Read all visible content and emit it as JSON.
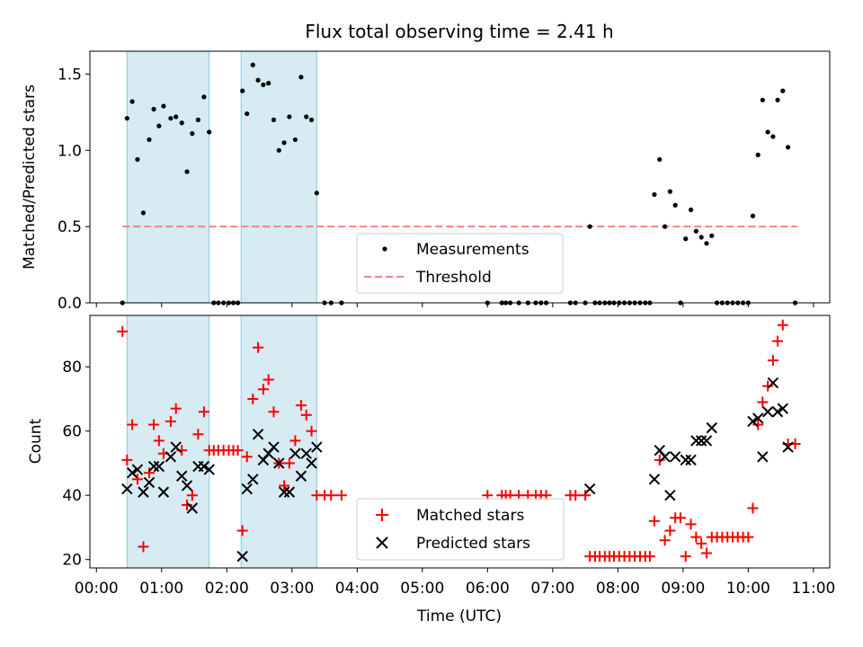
{
  "chart_data": [
    {
      "type": "scatter",
      "title": "Flux total observing time = 2.41 h",
      "xlabel": "",
      "ylabel": "Matched/Predicted stars",
      "xlim": [
        -0.1,
        11.25
      ],
      "ylim": [
        0,
        1.65
      ],
      "xticks": [
        0,
        1,
        2,
        3,
        4,
        5,
        6,
        7,
        8,
        9,
        10,
        11
      ],
      "yticks": [
        0.0,
        0.5,
        1.0,
        1.5
      ],
      "ytick_labels": [
        "0.0",
        "0.5",
        "1.0",
        "1.5"
      ],
      "shaded_intervals": [
        [
          0.47,
          1.73
        ],
        [
          2.22,
          3.38
        ]
      ],
      "threshold": {
        "value": 0.5,
        "x": [
          0.4,
          10.75
        ],
        "color": "#ff8080",
        "label": "Threshold"
      },
      "measurements": {
        "label": "Measurements",
        "color": "#000000",
        "points": [
          [
            0.4,
            0.0
          ],
          [
            0.47,
            1.21
          ],
          [
            0.55,
            1.32
          ],
          [
            0.63,
            0.94
          ],
          [
            0.72,
            0.59
          ],
          [
            0.81,
            1.07
          ],
          [
            0.88,
            1.27
          ],
          [
            0.96,
            1.16
          ],
          [
            1.03,
            1.29
          ],
          [
            1.14,
            1.21
          ],
          [
            1.22,
            1.22
          ],
          [
            1.31,
            1.18
          ],
          [
            1.39,
            0.86
          ],
          [
            1.47,
            1.11
          ],
          [
            1.56,
            1.2
          ],
          [
            1.65,
            1.35
          ],
          [
            1.73,
            1.12
          ],
          [
            1.8,
            0.0
          ],
          [
            1.87,
            0.0
          ],
          [
            1.95,
            0.0
          ],
          [
            2.03,
            0.0
          ],
          [
            2.1,
            0.0
          ],
          [
            2.17,
            0.0
          ],
          [
            2.24,
            1.39
          ],
          [
            2.31,
            1.24
          ],
          [
            2.4,
            1.56
          ],
          [
            2.48,
            1.46
          ],
          [
            2.56,
            1.43
          ],
          [
            2.64,
            1.44
          ],
          [
            2.72,
            1.2
          ],
          [
            2.8,
            1.0
          ],
          [
            2.88,
            1.05
          ],
          [
            2.96,
            1.22
          ],
          [
            3.05,
            1.07
          ],
          [
            3.14,
            1.48
          ],
          [
            3.22,
            1.22
          ],
          [
            3.3,
            1.2
          ],
          [
            3.38,
            0.72
          ],
          [
            3.5,
            0.0
          ],
          [
            3.6,
            0.0
          ],
          [
            3.76,
            0.0
          ],
          [
            6.0,
            0.0
          ],
          [
            6.22,
            0.0
          ],
          [
            6.28,
            0.0
          ],
          [
            6.35,
            0.0
          ],
          [
            6.48,
            0.0
          ],
          [
            6.62,
            0.0
          ],
          [
            6.74,
            0.0
          ],
          [
            6.82,
            0.0
          ],
          [
            6.9,
            0.0
          ],
          [
            7.27,
            0.0
          ],
          [
            7.35,
            0.0
          ],
          [
            7.5,
            0.0
          ],
          [
            7.57,
            0.5
          ],
          [
            7.65,
            0.0
          ],
          [
            7.72,
            0.0
          ],
          [
            7.8,
            0.0
          ],
          [
            7.87,
            0.0
          ],
          [
            7.94,
            0.0
          ],
          [
            8.02,
            0.0
          ],
          [
            8.1,
            0.0
          ],
          [
            8.18,
            0.0
          ],
          [
            8.26,
            0.0
          ],
          [
            8.34,
            0.0
          ],
          [
            8.42,
            0.0
          ],
          [
            8.49,
            0.0
          ],
          [
            8.56,
            0.71
          ],
          [
            8.64,
            0.94
          ],
          [
            8.72,
            0.5
          ],
          [
            8.8,
            0.73
          ],
          [
            8.88,
            0.64
          ],
          [
            8.96,
            0.0
          ],
          [
            9.04,
            0.42
          ],
          [
            9.12,
            0.61
          ],
          [
            9.2,
            0.47
          ],
          [
            9.28,
            0.43
          ],
          [
            9.36,
            0.39
          ],
          [
            9.44,
            0.44
          ],
          [
            9.52,
            0.0
          ],
          [
            9.6,
            0.0
          ],
          [
            9.68,
            0.0
          ],
          [
            9.76,
            0.0
          ],
          [
            9.84,
            0.0
          ],
          [
            9.92,
            0.0
          ],
          [
            10.0,
            0.0
          ],
          [
            10.07,
            0.57
          ],
          [
            10.15,
            0.97
          ],
          [
            10.22,
            1.33
          ],
          [
            10.3,
            1.12
          ],
          [
            10.38,
            1.09
          ],
          [
            10.45,
            1.33
          ],
          [
            10.53,
            1.39
          ],
          [
            10.61,
            1.02
          ],
          [
            10.72,
            0.0
          ]
        ]
      },
      "legend": {
        "location": "lower center",
        "entries": [
          "Measurements",
          "Threshold"
        ]
      }
    },
    {
      "type": "scatter",
      "title": "",
      "xlabel": "Time (UTC)",
      "ylabel": "Count",
      "xlim": [
        -0.1,
        11.25
      ],
      "ylim": [
        17.4,
        96
      ],
      "xticks": [
        0,
        1,
        2,
        3,
        4,
        5,
        6,
        7,
        8,
        9,
        10,
        11
      ],
      "xtick_labels": [
        "00:00",
        "01:00",
        "02:00",
        "03:00",
        "04:00",
        "05:00",
        "06:00",
        "07:00",
        "08:00",
        "09:00",
        "10:00",
        "11:00"
      ],
      "yticks": [
        20,
        40,
        60,
        80
      ],
      "ytick_labels": [
        "20",
        "40",
        "60",
        "80"
      ],
      "shaded_intervals": [
        [
          0.47,
          1.73
        ],
        [
          2.22,
          3.38
        ]
      ],
      "series": [
        {
          "name": "Matched stars",
          "marker": "+",
          "color": "#ff0000",
          "points": [
            [
              0.4,
              91
            ],
            [
              0.47,
              51
            ],
            [
              0.55,
              62
            ],
            [
              0.63,
              45
            ],
            [
              0.72,
              24
            ],
            [
              0.81,
              47
            ],
            [
              0.88,
              62
            ],
            [
              0.96,
              57
            ],
            [
              1.03,
              53
            ],
            [
              1.14,
              63
            ],
            [
              1.22,
              67
            ],
            [
              1.31,
              54
            ],
            [
              1.39,
              37
            ],
            [
              1.47,
              40
            ],
            [
              1.56,
              59
            ],
            [
              1.65,
              66
            ],
            [
              1.73,
              54
            ],
            [
              1.8,
              54
            ],
            [
              1.87,
              54
            ],
            [
              1.95,
              54
            ],
            [
              2.03,
              54
            ],
            [
              2.1,
              54
            ],
            [
              2.17,
              54
            ],
            [
              2.24,
              29
            ],
            [
              2.31,
              52
            ],
            [
              2.4,
              70
            ],
            [
              2.48,
              86
            ],
            [
              2.56,
              73
            ],
            [
              2.64,
              76
            ],
            [
              2.72,
              66
            ],
            [
              2.8,
              50
            ],
            [
              2.88,
              43
            ],
            [
              2.96,
              50
            ],
            [
              3.05,
              57
            ],
            [
              3.14,
              68
            ],
            [
              3.22,
              65
            ],
            [
              3.3,
              60
            ],
            [
              3.38,
              40
            ],
            [
              3.5,
              40
            ],
            [
              3.6,
              40
            ],
            [
              3.76,
              40
            ],
            [
              6.0,
              40
            ],
            [
              6.22,
              40
            ],
            [
              6.28,
              40
            ],
            [
              6.35,
              40
            ],
            [
              6.48,
              40
            ],
            [
              6.62,
              40
            ],
            [
              6.74,
              40
            ],
            [
              6.82,
              40
            ],
            [
              6.9,
              40
            ],
            [
              7.27,
              40
            ],
            [
              7.35,
              40
            ],
            [
              7.5,
              40
            ],
            [
              7.57,
              21
            ],
            [
              7.65,
              21
            ],
            [
              7.72,
              21
            ],
            [
              7.8,
              21
            ],
            [
              7.87,
              21
            ],
            [
              7.94,
              21
            ],
            [
              8.02,
              21
            ],
            [
              8.1,
              21
            ],
            [
              8.18,
              21
            ],
            [
              8.26,
              21
            ],
            [
              8.34,
              21
            ],
            [
              8.42,
              21
            ],
            [
              8.49,
              21
            ],
            [
              8.56,
              32
            ],
            [
              8.64,
              51
            ],
            [
              8.72,
              26
            ],
            [
              8.8,
              29
            ],
            [
              8.88,
              33
            ],
            [
              8.96,
              33
            ],
            [
              9.04,
              21
            ],
            [
              9.12,
              31
            ],
            [
              9.2,
              27
            ],
            [
              9.28,
              25
            ],
            [
              9.36,
              22
            ],
            [
              9.44,
              27
            ],
            [
              9.52,
              27
            ],
            [
              9.6,
              27
            ],
            [
              9.68,
              27
            ],
            [
              9.76,
              27
            ],
            [
              9.84,
              27
            ],
            [
              9.92,
              27
            ],
            [
              10.0,
              27
            ],
            [
              10.07,
              36
            ],
            [
              10.15,
              62
            ],
            [
              10.22,
              69
            ],
            [
              10.3,
              74
            ],
            [
              10.38,
              82
            ],
            [
              10.45,
              88
            ],
            [
              10.53,
              93
            ],
            [
              10.61,
              56
            ],
            [
              10.72,
              56
            ]
          ]
        },
        {
          "name": "Predicted stars",
          "marker": "x",
          "color": "#000000",
          "points": [
            [
              0.47,
              42
            ],
            [
              0.55,
              47
            ],
            [
              0.63,
              48
            ],
            [
              0.72,
              41
            ],
            [
              0.81,
              44
            ],
            [
              0.88,
              49
            ],
            [
              0.96,
              49
            ],
            [
              1.03,
              41
            ],
            [
              1.14,
              52
            ],
            [
              1.22,
              55
            ],
            [
              1.31,
              46
            ],
            [
              1.39,
              43
            ],
            [
              1.47,
              36
            ],
            [
              1.56,
              49
            ],
            [
              1.65,
              49
            ],
            [
              1.73,
              48
            ],
            [
              2.24,
              21
            ],
            [
              2.31,
              42
            ],
            [
              2.4,
              45
            ],
            [
              2.48,
              59
            ],
            [
              2.56,
              51
            ],
            [
              2.64,
              53
            ],
            [
              2.72,
              55
            ],
            [
              2.8,
              50
            ],
            [
              2.88,
              41
            ],
            [
              2.96,
              41
            ],
            [
              3.05,
              53
            ],
            [
              3.14,
              46
            ],
            [
              3.22,
              53
            ],
            [
              3.3,
              50
            ],
            [
              3.38,
              55
            ],
            [
              7.57,
              42
            ],
            [
              8.56,
              45
            ],
            [
              8.64,
              54
            ],
            [
              8.72,
              52
            ],
            [
              8.8,
              40
            ],
            [
              8.88,
              52
            ],
            [
              9.04,
              51
            ],
            [
              9.12,
              51
            ],
            [
              9.2,
              57
            ],
            [
              9.28,
              57
            ],
            [
              9.36,
              57
            ],
            [
              9.44,
              61
            ],
            [
              10.07,
              63
            ],
            [
              10.15,
              64
            ],
            [
              10.22,
              52
            ],
            [
              10.3,
              66
            ],
            [
              10.38,
              75
            ],
            [
              10.45,
              66
            ],
            [
              10.53,
              67
            ],
            [
              10.61,
              55
            ]
          ]
        }
      ],
      "legend": {
        "location": "lower center",
        "entries": [
          "Matched stars",
          "Predicted stars"
        ]
      }
    }
  ]
}
